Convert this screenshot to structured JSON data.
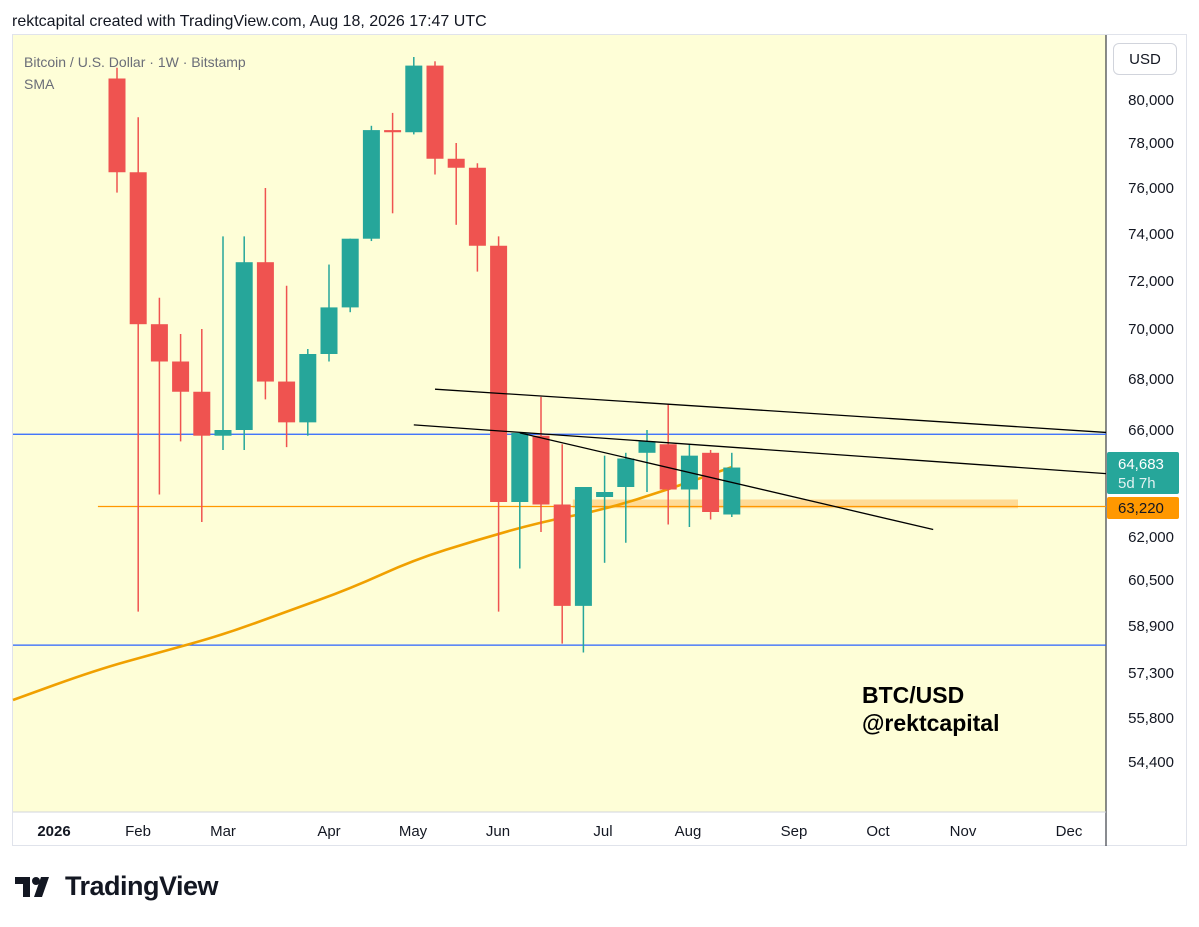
{
  "header": {
    "text": "rektcapital created with TradingView.com, Aug 18, 2026 17:47 UTC"
  },
  "legend": {
    "symbol": "Bitcoin / U.S. Dollar · 1W · Bitstamp",
    "indicator": "SMA"
  },
  "currency": "USD",
  "watermark": {
    "line1": "BTC/USD",
    "line2": "@rektcapital"
  },
  "brand": "TradingView",
  "colors": {
    "background": "#fefed7",
    "up": "#26a69a",
    "down": "#ef5350",
    "sma": "#f0a000",
    "hline_blue": "#2962ff",
    "hline_orange": "#ff9800",
    "price_badge": "#26a69a",
    "level_badge": "#ff9800"
  },
  "price_badges": {
    "last_price": "64,683",
    "countdown": "5d 7h",
    "level": "63,220"
  },
  "chart_data": {
    "type": "candlestick",
    "title": "Bitcoin / U.S. Dollar · 1W · Bitstamp",
    "y_ticks": [
      "80,000",
      "78,000",
      "76,000",
      "74,000",
      "72,000",
      "70,000",
      "68,000",
      "66,000",
      "62,000",
      "60,500",
      "58,900",
      "57,300",
      "55,800",
      "54,400"
    ],
    "y_tick_values": [
      80000,
      78000,
      76000,
      74000,
      72000,
      70000,
      68000,
      66000,
      62000,
      60500,
      58900,
      57300,
      55800,
      54400
    ],
    "x_ticks": [
      "2026",
      "Feb",
      "Mar",
      "Apr",
      "May",
      "Jun",
      "Jul",
      "Aug",
      "Sep",
      "Oct",
      "Nov",
      "Dec"
    ],
    "x_tick_weeks": [
      0.3,
      5.1,
      9.1,
      13.1,
      17.1,
      21.1,
      25.1,
      29.1,
      33.3,
      37.3,
      41.3,
      45.3
    ],
    "candles": [
      {
        "w": 4,
        "o": 81000,
        "h": 81500,
        "l": 75800,
        "c": 76700
      },
      {
        "w": 5,
        "o": 76700,
        "h": 79200,
        "l": 59400,
        "c": 70200
      },
      {
        "w": 6,
        "o": 70200,
        "h": 71300,
        "l": 63700,
        "c": 68700
      },
      {
        "w": 7,
        "o": 68700,
        "h": 69800,
        "l": 65600,
        "c": 67500
      },
      {
        "w": 8,
        "o": 67500,
        "h": 70000,
        "l": 62600,
        "c": 65800
      },
      {
        "w": 9,
        "o": 65800,
        "h": 73900,
        "l": 65300,
        "c": 66000
      },
      {
        "w": 10,
        "o": 66000,
        "h": 73900,
        "l": 65300,
        "c": 72800
      },
      {
        "w": 11,
        "o": 72800,
        "h": 76000,
        "l": 67200,
        "c": 67900
      },
      {
        "w": 12,
        "o": 67900,
        "h": 71800,
        "l": 65400,
        "c": 66300
      },
      {
        "w": 13,
        "o": 66300,
        "h": 69200,
        "l": 65800,
        "c": 69000
      },
      {
        "w": 14,
        "o": 69000,
        "h": 72700,
        "l": 68700,
        "c": 70900
      },
      {
        "w": 15,
        "o": 70900,
        "h": 73800,
        "l": 70700,
        "c": 73800
      },
      {
        "w": 16,
        "o": 73800,
        "h": 78800,
        "l": 73700,
        "c": 78600
      },
      {
        "w": 17,
        "o": 78600,
        "h": 79400,
        "l": 74900,
        "c": 78500
      },
      {
        "w": 18,
        "o": 78500,
        "h": 82000,
        "l": 78400,
        "c": 81600
      },
      {
        "w": 19,
        "o": 81600,
        "h": 81800,
        "l": 76600,
        "c": 77300
      },
      {
        "w": 20,
        "o": 77300,
        "h": 78000,
        "l": 74400,
        "c": 76900
      },
      {
        "w": 21,
        "o": 76900,
        "h": 77100,
        "l": 72400,
        "c": 73500
      },
      {
        "w": 22,
        "o": 73500,
        "h": 73900,
        "l": 59400,
        "c": 63400
      },
      {
        "w": 23,
        "o": 63400,
        "h": 65900,
        "l": 60900,
        "c": 65900
      },
      {
        "w": 24,
        "o": 65800,
        "h": 67300,
        "l": 62200,
        "c": 63300
      },
      {
        "w": 25,
        "o": 63300,
        "h": 65500,
        "l": 58300,
        "c": 59600
      },
      {
        "w": 26,
        "o": 59600,
        "h": 64000,
        "l": 58000,
        "c": 64000
      },
      {
        "w": 27,
        "o": 63600,
        "h": 65100,
        "l": 61100,
        "c": 63800
      },
      {
        "w": 28,
        "o": 64000,
        "h": 65200,
        "l": 61800,
        "c": 65000
      },
      {
        "w": 29,
        "o": 65200,
        "h": 66000,
        "l": 63800,
        "c": 65600
      },
      {
        "w": 30,
        "o": 65500,
        "h": 67000,
        "l": 62500,
        "c": 63900
      },
      {
        "w": 31,
        "o": 63900,
        "h": 65500,
        "l": 62400,
        "c": 65100
      },
      {
        "w": 32,
        "o": 65200,
        "h": 65300,
        "l": 62700,
        "c": 63000
      },
      {
        "w": 33,
        "o": 62900,
        "h": 65200,
        "l": 62800,
        "c": 64683
      }
    ],
    "sma": [
      {
        "w": 0,
        "v": 56400
      },
      {
        "w": 3,
        "v": 57400
      },
      {
        "w": 6,
        "v": 58000
      },
      {
        "w": 9,
        "v": 58600
      },
      {
        "w": 12,
        "v": 59400
      },
      {
        "w": 15,
        "v": 60200
      },
      {
        "w": 18,
        "v": 61200
      },
      {
        "w": 21,
        "v": 61900
      },
      {
        "w": 24,
        "v": 62600
      },
      {
        "w": 27,
        "v": 63100
      },
      {
        "w": 30,
        "v": 63900
      },
      {
        "w": 33,
        "v": 64700
      }
    ],
    "horizontal_levels": [
      {
        "value": 65850,
        "color": "#2962ff"
      },
      {
        "value": 58250,
        "color": "#2962ff"
      },
      {
        "value": 63220,
        "color": "#ff9800",
        "from_w": 3.1
      }
    ],
    "support_zone": {
      "from_w": 25.5,
      "to_w": 46.5,
      "low": 63150,
      "high": 63500
    },
    "trendlines": [
      {
        "w1": 19,
        "v1": 67600,
        "w2": 52,
        "v2": 65850
      },
      {
        "w1": 18,
        "v1": 66200,
        "w2": 52,
        "v2": 64400
      },
      {
        "w1": 23,
        "v1": 65900,
        "w2": 42.5,
        "v2": 62300
      }
    ]
  }
}
